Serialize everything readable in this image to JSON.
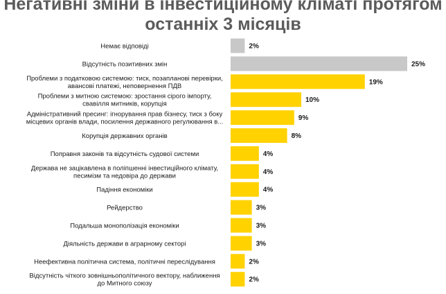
{
  "chart_data": {
    "type": "bar",
    "orientation": "horizontal",
    "title_lines": [
      "Негативні зміни в інвестиційному кліматі протягом",
      "останніх 3 місяців"
    ],
    "xlim": [
      0,
      25
    ],
    "grid": false,
    "categories": [
      [
        "Немає відповіді"
      ],
      [
        "Відсутність  позитивних змін"
      ],
      [
        "Проблеми з податковою системою: тиск, позапланові перевірки,",
        "авансові платежі, неповернення ПДВ"
      ],
      [
        "Проблеми з митною системою: зростання сірого імпорту,",
        "свавілля митників,  корупція"
      ],
      [
        "Адміністративний  пресинг: ігнорування прав бізнесу, тиск з боку",
        "місцевих органів влади, посилення державного регулювання в..."
      ],
      [
        "Корупція  державних органів"
      ],
      [
        "Поправня законів та відсутність судової системи"
      ],
      [
        "Держава не зацікавлена в поліпшенні інвестиційного клімату,",
        "песимізм та недовіра до держави"
      ],
      [
        "Падіння економіки"
      ],
      [
        "Рейдерство"
      ],
      [
        "Подальша монополізація  економіки"
      ],
      [
        "Діяльність держави в аграрному  секторі"
      ],
      [
        "Неефективна політична система, політичні переслідування"
      ],
      [
        "Відсутність  чіткого зовнішньополітичного  вектору, наближення",
        "до Митного союзу"
      ]
    ],
    "values": [
      2,
      25,
      19,
      10,
      9,
      8,
      4,
      4,
      4,
      3,
      3,
      3,
      2,
      2
    ],
    "value_labels": [
      "2%",
      "25%",
      "19%",
      "10%",
      "9%",
      "8%",
      "4%",
      "4%",
      "4%",
      "3%",
      "3%",
      "3%",
      "2%",
      "2%"
    ],
    "bar_colors": [
      "#c8c8c8",
      "#c8c8c8",
      "#ffd200",
      "#ffd200",
      "#ffd200",
      "#ffd200",
      "#ffd200",
      "#ffd200",
      "#ffd200",
      "#ffd200",
      "#ffd200",
      "#ffd200",
      "#ffd200",
      "#ffd200"
    ]
  }
}
